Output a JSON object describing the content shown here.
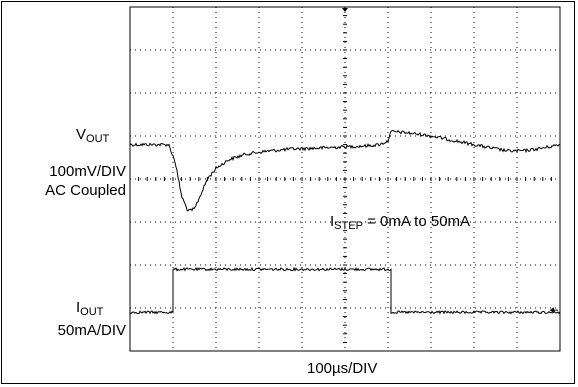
{
  "chart_data": {
    "type": "line",
    "xlabel": "100µs/DIV",
    "grid": true,
    "divisions": {
      "x": 10,
      "y": 8
    },
    "timebase_per_div_us": 100,
    "annotation": {
      "main": "I",
      "sub": "STEP",
      "rest": " = 0mA to 50mA"
    },
    "series": [
      {
        "trace": "vout",
        "label": {
          "main": "V",
          "sub": "OUT"
        },
        "scale": "100mV/DIV",
        "coupling": "AC Coupled",
        "x_div": [
          0,
          0.9,
          1.05,
          1.2,
          1.35,
          1.5,
          1.65,
          1.8,
          2.0,
          2.3,
          2.7,
          3.2,
          3.8,
          4.4,
          5.0,
          5.5,
          5.8,
          6.0,
          6.05,
          6.1,
          6.4,
          6.9,
          7.4,
          7.9,
          8.4,
          8.8,
          9.2,
          9.6,
          10.0
        ],
        "y_mv": [
          0,
          0,
          -40,
          -120,
          -155,
          -150,
          -115,
          -80,
          -55,
          -35,
          -22,
          -15,
          -10,
          -8,
          -5,
          -3,
          0,
          8,
          28,
          30,
          28,
          22,
          12,
          2,
          -8,
          -15,
          -14,
          -8,
          0
        ]
      },
      {
        "trace": "iout",
        "label": {
          "main": "I",
          "sub": "OUT"
        },
        "scale": "50mA/DIV",
        "x_div": [
          0,
          1.0,
          1.0,
          6.05,
          6.05,
          10.0
        ],
        "y_ma": [
          0,
          0,
          50,
          50,
          0,
          0
        ]
      }
    ]
  },
  "labels": {
    "vout_main": "V",
    "vout_sub": "OUT",
    "vout_scale": "100mV/DIV",
    "vout_coupling": "AC Coupled",
    "iout_main": "I",
    "iout_sub": "OUT",
    "iout_scale": "50mA/DIV",
    "annotation_main": "I",
    "annotation_sub": "STEP",
    "annotation_rest": " = 0mA to 50mA",
    "time_scale": "100µs/DIV"
  }
}
